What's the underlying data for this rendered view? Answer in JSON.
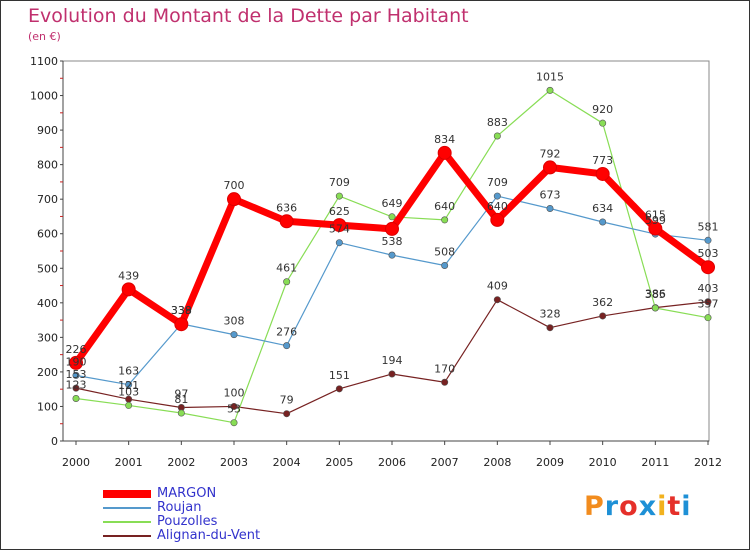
{
  "title": "Evolution du Montant de la Dette par Habitant",
  "subtitle": "(en €)",
  "logo": {
    "text": "Proxiti",
    "colors": [
      "#f28c1e",
      "#1e90d6",
      "#e5302a",
      "#1e90d6",
      "#f2b21e",
      "#e5302a",
      "#1e90d6"
    ]
  },
  "chart_data": {
    "type": "line",
    "title": "Evolution du Montant de la Dette par Habitant",
    "subtitle": "(en €)",
    "x": [
      "2000",
      "2001",
      "2002",
      "2003",
      "2004",
      "2005",
      "2006",
      "2007",
      "2008",
      "2009",
      "2010",
      "2011",
      "2012"
    ],
    "ylim": [
      0,
      1100
    ],
    "yticks": [
      0,
      100,
      200,
      300,
      400,
      500,
      600,
      700,
      800,
      900,
      1000,
      1100
    ],
    "grid": false,
    "legend": "bottom-left",
    "series": [
      {
        "name": "MARGON",
        "color": "#ff0000",
        "values": [
          226,
          439,
          338,
          700,
          636,
          625,
          614,
          834,
          640,
          792,
          773,
          615,
          503
        ],
        "labels": [
          "226",
          "439",
          "338",
          "700",
          "636",
          "625",
          "",
          "834",
          "640",
          "792",
          "773",
          "615",
          "503"
        ]
      },
      {
        "name": "Roujan",
        "color": "#5599cc",
        "values": [
          190,
          163,
          339,
          308,
          276,
          574,
          538,
          508,
          709,
          673,
          634,
          599,
          581
        ],
        "labels": [
          "190",
          "163",
          "339",
          "308",
          "276",
          "574",
          "538",
          "508",
          "709",
          "673",
          "634",
          "599",
          "581"
        ]
      },
      {
        "name": "Pouzolles",
        "color": "#88dd55",
        "values": [
          123,
          103,
          81,
          53,
          461,
          709,
          649,
          640,
          883,
          1015,
          920,
          385,
          357
        ],
        "labels": [
          "123",
          "103",
          "81",
          "53",
          "461",
          "709",
          "649",
          "640",
          "883",
          "1015",
          "920",
          "385",
          "357"
        ]
      },
      {
        "name": "Alignan-du-Vent",
        "color": "#772222",
        "values": [
          153,
          121,
          97,
          100,
          79,
          151,
          194,
          170,
          409,
          328,
          362,
          386,
          403
        ],
        "labels": [
          "153",
          "121",
          "97",
          "100",
          "79",
          "151",
          "194",
          "170",
          "409",
          "328",
          "362",
          "386",
          "403"
        ]
      }
    ]
  }
}
